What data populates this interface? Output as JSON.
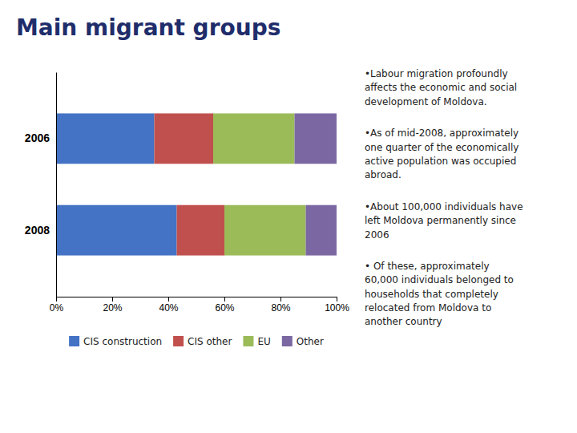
{
  "chart_data": {
    "type": "bar",
    "orientation": "horizontal",
    "stacked": true,
    "title": "Main migrant groups",
    "categories": [
      "2006",
      "2008"
    ],
    "series": [
      {
        "name": "CIS construction",
        "color": "#4472c4",
        "values": [
          35,
          43
        ]
      },
      {
        "name": "CIS other",
        "color": "#c0504d",
        "values": [
          21,
          17
        ]
      },
      {
        "name": "EU",
        "color": "#9bbb59",
        "values": [
          29,
          29
        ]
      },
      {
        "name": "Other",
        "color": "#7b68a2",
        "values": [
          15,
          11
        ]
      }
    ],
    "xlim": [
      0,
      100
    ],
    "xticks": [
      {
        "value": 0,
        "label": "0%"
      },
      {
        "value": 20,
        "label": "20%"
      },
      {
        "value": 40,
        "label": "40%"
      },
      {
        "value": 60,
        "label": "60%"
      },
      {
        "value": 80,
        "label": "80%"
      },
      {
        "value": 100,
        "label": "100%"
      }
    ],
    "grid": false,
    "legend": "bottom",
    "annotations": [
      "•Labour migration profoundly\naffects the economic and social\ndevelopment of Moldova.",
      "•As of mid-2008, approximately\none quarter of the economically\nactive population was occupied\nabroad.",
      "•About 100,000 individuals have\nleft Moldova permanently since\n2006",
      "• Of these, approximately\n60,000 individuals belonged to\nhouseholds that completely\nrelocated from Moldova to\nanother country"
    ]
  }
}
